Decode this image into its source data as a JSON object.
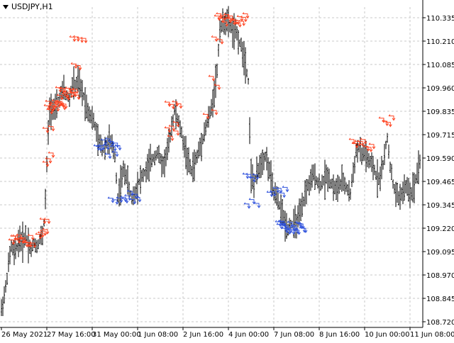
{
  "window": {
    "title": "USDJPY,H1",
    "menu_icon": "triangle-down-icon"
  },
  "colors": {
    "background": "#ffffff",
    "grid": "#c8c8c8",
    "bars": "#000000",
    "sell_arrows": "#ff4422",
    "buy_arrows": "#3355dd",
    "axis": "#000000"
  },
  "chart_data": {
    "type": "bar",
    "style": "OHLC bars with trade arrows",
    "symbol": "USDJPY",
    "timeframe": "H1",
    "title": "USDJPY,H1",
    "grid": true,
    "ylim": [
      108.72,
      110.335
    ],
    "y_ticks": [
      "110.335",
      "110.210",
      "110.085",
      "109.960",
      "109.835",
      "109.715",
      "109.590",
      "109.465",
      "109.345",
      "109.220",
      "109.095",
      "108.970",
      "108.845",
      "108.720"
    ],
    "x_ticks": [
      "26 May 2021",
      "27 May 16:00",
      "31 May 00:00",
      "1 Jun 08:00",
      "2 Jun 16:00",
      "4 Jun 00:00",
      "7 Jun 08:00",
      "8 Jun 16:00",
      "10 Jun 00:00",
      "11 Jun 08:00"
    ],
    "close_path": [
      [
        0,
        108.75
      ],
      [
        4,
        108.82
      ],
      [
        8,
        108.9
      ],
      [
        12,
        109.02
      ],
      [
        16,
        109.12
      ],
      [
        20,
        109.08
      ],
      [
        24,
        109.12
      ],
      [
        28,
        109.16
      ],
      [
        32,
        109.14
      ],
      [
        36,
        109.18
      ],
      [
        40,
        109.14
      ],
      [
        44,
        109.1
      ],
      [
        48,
        109.14
      ],
      [
        52,
        109.12
      ],
      [
        56,
        109.16
      ],
      [
        60,
        109.18
      ],
      [
        63,
        109.28
      ],
      [
        66,
        109.55
      ],
      [
        68,
        109.72
      ],
      [
        70,
        109.84
      ],
      [
        74,
        109.86
      ],
      [
        78,
        109.84
      ],
      [
        82,
        109.88
      ],
      [
        86,
        109.93
      ],
      [
        90,
        109.95
      ],
      [
        94,
        109.92
      ],
      [
        98,
        109.9
      ],
      [
        102,
        109.98
      ],
      [
        106,
        109.97
      ],
      [
        110,
        110.0
      ],
      [
        114,
        109.95
      ],
      [
        118,
        109.92
      ],
      [
        122,
        109.86
      ],
      [
        126,
        109.83
      ],
      [
        130,
        109.8
      ],
      [
        134,
        109.76
      ],
      [
        138,
        109.68
      ],
      [
        142,
        109.66
      ],
      [
        146,
        109.64
      ],
      [
        150,
        109.66
      ],
      [
        154,
        109.68
      ],
      [
        158,
        109.65
      ],
      [
        162,
        109.6
      ],
      [
        166,
        109.38
      ],
      [
        170,
        109.45
      ],
      [
        174,
        109.52
      ],
      [
        178,
        109.5
      ],
      [
        182,
        109.42
      ],
      [
        186,
        109.38
      ],
      [
        190,
        109.4
      ],
      [
        194,
        109.45
      ],
      [
        198,
        109.48
      ],
      [
        202,
        109.5
      ],
      [
        206,
        109.52
      ],
      [
        210,
        109.55
      ],
      [
        214,
        109.58
      ],
      [
        218,
        109.6
      ],
      [
        222,
        109.62
      ],
      [
        226,
        109.58
      ],
      [
        230,
        109.55
      ],
      [
        234,
        109.6
      ],
      [
        238,
        109.66
      ],
      [
        242,
        109.76
      ],
      [
        246,
        109.84
      ],
      [
        250,
        109.8
      ],
      [
        254,
        109.75
      ],
      [
        258,
        109.68
      ],
      [
        262,
        109.62
      ],
      [
        266,
        109.56
      ],
      [
        270,
        109.52
      ],
      [
        274,
        109.56
      ],
      [
        278,
        109.6
      ],
      [
        282,
        109.65
      ],
      [
        286,
        109.7
      ],
      [
        290,
        109.75
      ],
      [
        294,
        109.8
      ],
      [
        298,
        109.85
      ],
      [
        302,
        109.95
      ],
      [
        306,
        110.05
      ],
      [
        310,
        110.28
      ],
      [
        314,
        110.3
      ],
      [
        318,
        110.32
      ],
      [
        322,
        110.3
      ],
      [
        326,
        110.28
      ],
      [
        330,
        110.26
      ],
      [
        334,
        110.25
      ],
      [
        338,
        110.2
      ],
      [
        342,
        110.16
      ],
      [
        346,
        110.1
      ],
      [
        350,
        110.0
      ],
      [
        354,
        109.5
      ],
      [
        358,
        109.45
      ],
      [
        362,
        109.5
      ],
      [
        366,
        109.55
      ],
      [
        370,
        109.58
      ],
      [
        374,
        109.6
      ],
      [
        378,
        109.55
      ],
      [
        382,
        109.48
      ],
      [
        386,
        109.4
      ],
      [
        390,
        109.38
      ],
      [
        394,
        109.34
      ],
      [
        398,
        109.3
      ],
      [
        402,
        109.24
      ],
      [
        406,
        109.22
      ],
      [
        410,
        109.24
      ],
      [
        414,
        109.23
      ],
      [
        418,
        109.25
      ],
      [
        422,
        109.28
      ],
      [
        426,
        109.32
      ],
      [
        430,
        109.4
      ],
      [
        434,
        109.44
      ],
      [
        438,
        109.46
      ],
      [
        442,
        109.5
      ],
      [
        446,
        109.48
      ],
      [
        450,
        109.44
      ],
      [
        454,
        109.46
      ],
      [
        458,
        109.48
      ],
      [
        462,
        109.5
      ],
      [
        466,
        109.46
      ],
      [
        470,
        109.44
      ],
      [
        474,
        109.42
      ],
      [
        478,
        109.44
      ],
      [
        482,
        109.46
      ],
      [
        486,
        109.45
      ],
      [
        490,
        109.42
      ],
      [
        494,
        109.4
      ],
      [
        498,
        109.52
      ],
      [
        502,
        109.62
      ],
      [
        506,
        109.64
      ],
      [
        510,
        109.6
      ],
      [
        514,
        109.62
      ],
      [
        518,
        109.58
      ],
      [
        522,
        109.56
      ],
      [
        526,
        109.54
      ],
      [
        530,
        109.5
      ],
      [
        534,
        109.48
      ],
      [
        538,
        109.52
      ],
      [
        542,
        109.6
      ],
      [
        546,
        109.7
      ],
      [
        550,
        109.55
      ],
      [
        554,
        109.45
      ],
      [
        558,
        109.4
      ],
      [
        562,
        109.38
      ],
      [
        566,
        109.4
      ],
      [
        570,
        109.42
      ],
      [
        574,
        109.44
      ],
      [
        578,
        109.4
      ],
      [
        582,
        109.42
      ],
      [
        586,
        109.48
      ],
      [
        590,
        109.55
      ],
      [
        594,
        109.6
      ]
    ],
    "sell_arrow_clusters": [
      {
        "from": 16,
        "to": 46,
        "price": 109.15,
        "count": 12
      },
      {
        "from": 54,
        "to": 64,
        "price": 109.18,
        "count": 4
      },
      {
        "from": 60,
        "to": 66,
        "price": 109.25,
        "count": 2
      },
      {
        "from": 64,
        "to": 72,
        "price": 109.58,
        "count": 3
      },
      {
        "from": 64,
        "to": 72,
        "price": 109.75,
        "count": 2
      },
      {
        "from": 66,
        "to": 90,
        "price": 109.86,
        "count": 14
      },
      {
        "from": 82,
        "to": 108,
        "price": 109.93,
        "count": 12
      },
      {
        "from": 102,
        "to": 118,
        "price": 110.2,
        "count": 4
      },
      {
        "from": 104,
        "to": 110,
        "price": 110.09,
        "count": 2
      },
      {
        "from": 236,
        "to": 252,
        "price": 109.88,
        "count": 4
      },
      {
        "from": 236,
        "to": 248,
        "price": 109.76,
        "count": 3
      },
      {
        "from": 240,
        "to": 248,
        "price": 109.7,
        "count": 2
      },
      {
        "from": 290,
        "to": 302,
        "price": 109.83,
        "count": 2
      },
      {
        "from": 298,
        "to": 306,
        "price": 109.99,
        "count": 2
      },
      {
        "from": 302,
        "to": 310,
        "price": 110.2,
        "count": 2
      },
      {
        "from": 306,
        "to": 346,
        "price": 110.32,
        "count": 16
      },
      {
        "from": 496,
        "to": 524,
        "price": 109.66,
        "count": 8
      },
      {
        "from": 538,
        "to": 552,
        "price": 109.78,
        "count": 4
      }
    ],
    "buy_arrow_clusters": [
      {
        "from": 136,
        "to": 166,
        "price": 109.66,
        "count": 10
      },
      {
        "from": 152,
        "to": 162,
        "price": 109.62,
        "count": 2
      },
      {
        "from": 156,
        "to": 174,
        "price": 109.35,
        "count": 4
      },
      {
        "from": 176,
        "to": 194,
        "price": 109.38,
        "count": 6
      },
      {
        "from": 346,
        "to": 360,
        "price": 109.48,
        "count": 4
      },
      {
        "from": 348,
        "to": 362,
        "price": 109.35,
        "count": 3
      },
      {
        "from": 380,
        "to": 402,
        "price": 109.4,
        "count": 6
      },
      {
        "from": 392,
        "to": 428,
        "price": 109.22,
        "count": 20
      }
    ]
  }
}
